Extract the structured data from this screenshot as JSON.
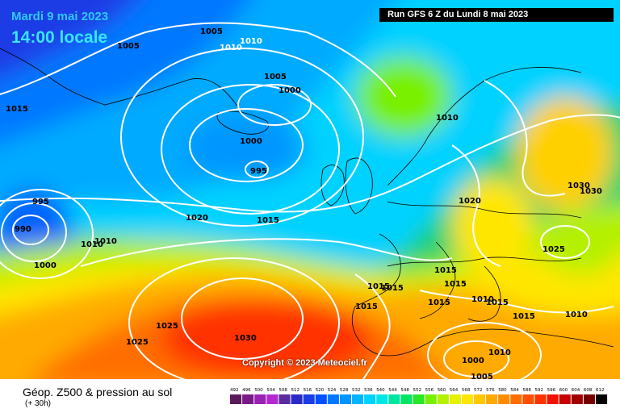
{
  "header": {
    "date": "Mardi 9 mai 2023",
    "time": "14:00 locale",
    "run": "Run GFS 6 Z du Lundi 8 mai 2023"
  },
  "copyright": "Copyright © 2023 Meteociel.fr",
  "footer": {
    "title": "Géop. Z500 & pression au sol",
    "subtitle": "(+ 30h)"
  },
  "isobar_labels": [
    "1005",
    "1010",
    "1010",
    "1005",
    "1005",
    "1000",
    "1015",
    "1000",
    "995",
    "995",
    "990",
    "1010",
    "1010",
    "1000",
    "1020",
    "1015",
    "1010",
    "1020",
    "1030",
    "1030",
    "1025",
    "1015",
    "1015",
    "1015",
    "1015",
    "1015",
    "1015",
    "1025",
    "1025",
    "1030",
    "1010",
    "1000",
    "1005",
    "1010",
    "1010",
    "1015",
    "1015"
  ],
  "scale": {
    "values": [
      "492",
      "496",
      "500",
      "504",
      "508",
      "512",
      "516",
      "520",
      "524",
      "528",
      "532",
      "536",
      "540",
      "544",
      "548",
      "552",
      "556",
      "560",
      "564",
      "568",
      "572",
      "576",
      "580",
      "584",
      "588",
      "592",
      "596",
      "600",
      "604",
      "608",
      "612"
    ],
    "colors": [
      "#5c1a5c",
      "#7a1a86",
      "#9a22b4",
      "#b428d2",
      "#5a2ca0",
      "#2a2ac8",
      "#1c3ce6",
      "#0050ff",
      "#0078ff",
      "#0096ff",
      "#00b4ff",
      "#00d2ff",
      "#00e6e6",
      "#00e6a0",
      "#00e664",
      "#28e628",
      "#78f000",
      "#b4f000",
      "#e6f000",
      "#ffe600",
      "#ffc800",
      "#ffaa00",
      "#ff8c00",
      "#ff6e00",
      "#ff5000",
      "#ff3200",
      "#f01400",
      "#c80000",
      "#a00000",
      "#780000",
      "#000000"
    ]
  }
}
